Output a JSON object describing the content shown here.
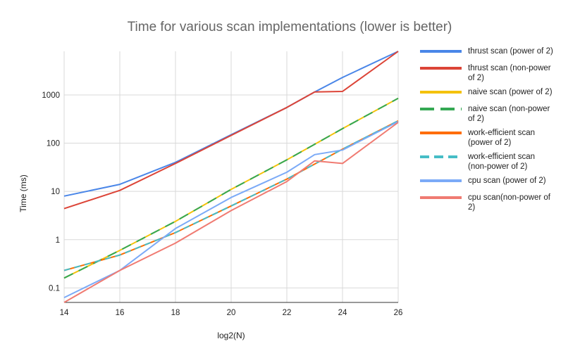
{
  "chart_data": {
    "type": "line",
    "title": "Time for various scan implementations (lower is better)",
    "xlabel": "log2(N)",
    "ylabel": "Time (ms)",
    "yscale": "log",
    "xlim": [
      14,
      26
    ],
    "ylim": [
      0.05,
      8000
    ],
    "x_ticks": [
      14,
      16,
      18,
      20,
      22,
      24,
      26
    ],
    "y_ticks": [
      {
        "value": 0.1,
        "label": "0.1"
      },
      {
        "value": 1,
        "label": "1"
      },
      {
        "value": 10,
        "label": "10"
      },
      {
        "value": 100,
        "label": "100"
      },
      {
        "value": 1000,
        "label": "1000"
      }
    ],
    "x": [
      14,
      16,
      18,
      20,
      22,
      23,
      24,
      26
    ],
    "legend_position": "right",
    "grid": true,
    "series": [
      {
        "name": "thrust scan (power of 2)",
        "legend_lines": [
          "thrust scan (power of 2)"
        ],
        "color": "#4a86e8",
        "dash": "",
        "values": [
          8,
          14,
          40,
          150,
          550,
          1150,
          2300,
          8000
        ]
      },
      {
        "name": "thrust scan (non-power of 2)",
        "legend_lines": [
          "thrust scan (non-power",
          "of 2)"
        ],
        "color": "#dc4437",
        "dash": "",
        "values": [
          4.4,
          10.5,
          38,
          145,
          550,
          1150,
          1180,
          8000
        ]
      },
      {
        "name": "naive scan (power of 2)",
        "legend_lines": [
          "naive scan (power of 2)"
        ],
        "color": "#f4c20d",
        "dash": "",
        "values": [
          0.16,
          0.6,
          2.4,
          11,
          45,
          95,
          200,
          850
        ]
      },
      {
        "name": "naive scan (non-power of 2)",
        "legend_lines": [
          "naive scan (non-power",
          "of 2)"
        ],
        "color": "#34a853",
        "dash": "14,9",
        "values": [
          0.16,
          0.6,
          2.4,
          11,
          45,
          95,
          200,
          850
        ]
      },
      {
        "name": "work-efficient scan (power of 2)",
        "legend_lines": [
          "work-efficient scan",
          "(power of 2)"
        ],
        "color": "#ff6d01",
        "dash": "",
        "values": [
          0.23,
          0.48,
          1.4,
          5,
          18,
          37,
          75,
          290
        ]
      },
      {
        "name": "work-efficient scan (non-power of 2)",
        "legend_lines": [
          "work-efficient scan",
          "(non-power of 2)"
        ],
        "color": "#46bdc6",
        "dash": "9,6",
        "values": [
          0.23,
          0.48,
          1.4,
          5,
          18,
          37,
          75,
          290
        ]
      },
      {
        "name": "cpu scan (power of 2)",
        "legend_lines": [
          "cpu scan (power of 2)"
        ],
        "color": "#7baaf7",
        "dash": "",
        "values": [
          0.063,
          0.23,
          1.7,
          7.5,
          25,
          58,
          72,
          280
        ]
      },
      {
        "name": "cpu scan(non-power of 2)",
        "legend_lines": [
          "cpu scan(non-power of",
          "2)"
        ],
        "color": "#f07b72",
        "dash": "",
        "values": [
          0.05,
          0.23,
          0.85,
          4,
          16,
          43,
          38,
          270
        ]
      }
    ]
  }
}
